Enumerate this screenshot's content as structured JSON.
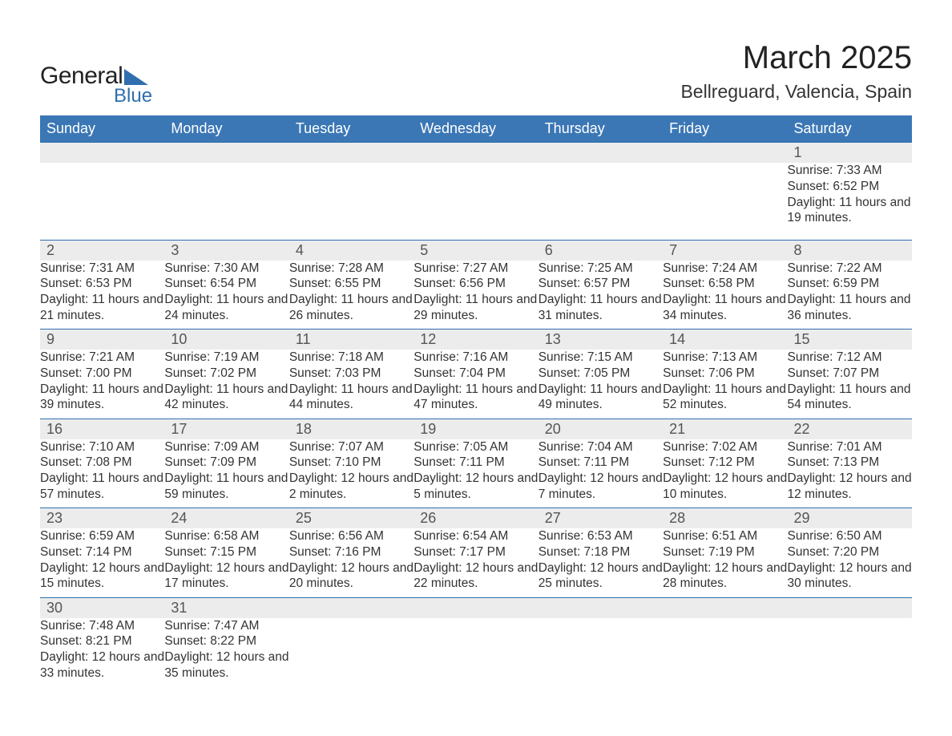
{
  "brand": {
    "word1": "General",
    "word2": "Blue",
    "accent": "#2f6faf"
  },
  "title": "March 2025",
  "location": "Bellreguard, Valencia, Spain",
  "colors": {
    "header_bg": "#3b77b5",
    "header_text": "#ffffff",
    "daynum_bg": "#ececec",
    "row_divider": "#2f6faf",
    "body_text": "#333333",
    "page_bg": "#ffffff"
  },
  "weekdays": [
    "Sunday",
    "Monday",
    "Tuesday",
    "Wednesday",
    "Thursday",
    "Friday",
    "Saturday"
  ],
  "weeks": [
    [
      null,
      null,
      null,
      null,
      null,
      null,
      {
        "n": "1",
        "sr": "Sunrise: 7:33 AM",
        "ss": "Sunset: 6:52 PM",
        "dl": "Daylight: 11 hours and 19 minutes."
      }
    ],
    [
      {
        "n": "2",
        "sr": "Sunrise: 7:31 AM",
        "ss": "Sunset: 6:53 PM",
        "dl": "Daylight: 11 hours and 21 minutes."
      },
      {
        "n": "3",
        "sr": "Sunrise: 7:30 AM",
        "ss": "Sunset: 6:54 PM",
        "dl": "Daylight: 11 hours and 24 minutes."
      },
      {
        "n": "4",
        "sr": "Sunrise: 7:28 AM",
        "ss": "Sunset: 6:55 PM",
        "dl": "Daylight: 11 hours and 26 minutes."
      },
      {
        "n": "5",
        "sr": "Sunrise: 7:27 AM",
        "ss": "Sunset: 6:56 PM",
        "dl": "Daylight: 11 hours and 29 minutes."
      },
      {
        "n": "6",
        "sr": "Sunrise: 7:25 AM",
        "ss": "Sunset: 6:57 PM",
        "dl": "Daylight: 11 hours and 31 minutes."
      },
      {
        "n": "7",
        "sr": "Sunrise: 7:24 AM",
        "ss": "Sunset: 6:58 PM",
        "dl": "Daylight: 11 hours and 34 minutes."
      },
      {
        "n": "8",
        "sr": "Sunrise: 7:22 AM",
        "ss": "Sunset: 6:59 PM",
        "dl": "Daylight: 11 hours and 36 minutes."
      }
    ],
    [
      {
        "n": "9",
        "sr": "Sunrise: 7:21 AM",
        "ss": "Sunset: 7:00 PM",
        "dl": "Daylight: 11 hours and 39 minutes."
      },
      {
        "n": "10",
        "sr": "Sunrise: 7:19 AM",
        "ss": "Sunset: 7:02 PM",
        "dl": "Daylight: 11 hours and 42 minutes."
      },
      {
        "n": "11",
        "sr": "Sunrise: 7:18 AM",
        "ss": "Sunset: 7:03 PM",
        "dl": "Daylight: 11 hours and 44 minutes."
      },
      {
        "n": "12",
        "sr": "Sunrise: 7:16 AM",
        "ss": "Sunset: 7:04 PM",
        "dl": "Daylight: 11 hours and 47 minutes."
      },
      {
        "n": "13",
        "sr": "Sunrise: 7:15 AM",
        "ss": "Sunset: 7:05 PM",
        "dl": "Daylight: 11 hours and 49 minutes."
      },
      {
        "n": "14",
        "sr": "Sunrise: 7:13 AM",
        "ss": "Sunset: 7:06 PM",
        "dl": "Daylight: 11 hours and 52 minutes."
      },
      {
        "n": "15",
        "sr": "Sunrise: 7:12 AM",
        "ss": "Sunset: 7:07 PM",
        "dl": "Daylight: 11 hours and 54 minutes."
      }
    ],
    [
      {
        "n": "16",
        "sr": "Sunrise: 7:10 AM",
        "ss": "Sunset: 7:08 PM",
        "dl": "Daylight: 11 hours and 57 minutes."
      },
      {
        "n": "17",
        "sr": "Sunrise: 7:09 AM",
        "ss": "Sunset: 7:09 PM",
        "dl": "Daylight: 11 hours and 59 minutes."
      },
      {
        "n": "18",
        "sr": "Sunrise: 7:07 AM",
        "ss": "Sunset: 7:10 PM",
        "dl": "Daylight: 12 hours and 2 minutes."
      },
      {
        "n": "19",
        "sr": "Sunrise: 7:05 AM",
        "ss": "Sunset: 7:11 PM",
        "dl": "Daylight: 12 hours and 5 minutes."
      },
      {
        "n": "20",
        "sr": "Sunrise: 7:04 AM",
        "ss": "Sunset: 7:11 PM",
        "dl": "Daylight: 12 hours and 7 minutes."
      },
      {
        "n": "21",
        "sr": "Sunrise: 7:02 AM",
        "ss": "Sunset: 7:12 PM",
        "dl": "Daylight: 12 hours and 10 minutes."
      },
      {
        "n": "22",
        "sr": "Sunrise: 7:01 AM",
        "ss": "Sunset: 7:13 PM",
        "dl": "Daylight: 12 hours and 12 minutes."
      }
    ],
    [
      {
        "n": "23",
        "sr": "Sunrise: 6:59 AM",
        "ss": "Sunset: 7:14 PM",
        "dl": "Daylight: 12 hours and 15 minutes."
      },
      {
        "n": "24",
        "sr": "Sunrise: 6:58 AM",
        "ss": "Sunset: 7:15 PM",
        "dl": "Daylight: 12 hours and 17 minutes."
      },
      {
        "n": "25",
        "sr": "Sunrise: 6:56 AM",
        "ss": "Sunset: 7:16 PM",
        "dl": "Daylight: 12 hours and 20 minutes."
      },
      {
        "n": "26",
        "sr": "Sunrise: 6:54 AM",
        "ss": "Sunset: 7:17 PM",
        "dl": "Daylight: 12 hours and 22 minutes."
      },
      {
        "n": "27",
        "sr": "Sunrise: 6:53 AM",
        "ss": "Sunset: 7:18 PM",
        "dl": "Daylight: 12 hours and 25 minutes."
      },
      {
        "n": "28",
        "sr": "Sunrise: 6:51 AM",
        "ss": "Sunset: 7:19 PM",
        "dl": "Daylight: 12 hours and 28 minutes."
      },
      {
        "n": "29",
        "sr": "Sunrise: 6:50 AM",
        "ss": "Sunset: 7:20 PM",
        "dl": "Daylight: 12 hours and 30 minutes."
      }
    ],
    [
      {
        "n": "30",
        "sr": "Sunrise: 7:48 AM",
        "ss": "Sunset: 8:21 PM",
        "dl": "Daylight: 12 hours and 33 minutes."
      },
      {
        "n": "31",
        "sr": "Sunrise: 7:47 AM",
        "ss": "Sunset: 8:22 PM",
        "dl": "Daylight: 12 hours and 35 minutes."
      },
      null,
      null,
      null,
      null,
      null
    ]
  ]
}
